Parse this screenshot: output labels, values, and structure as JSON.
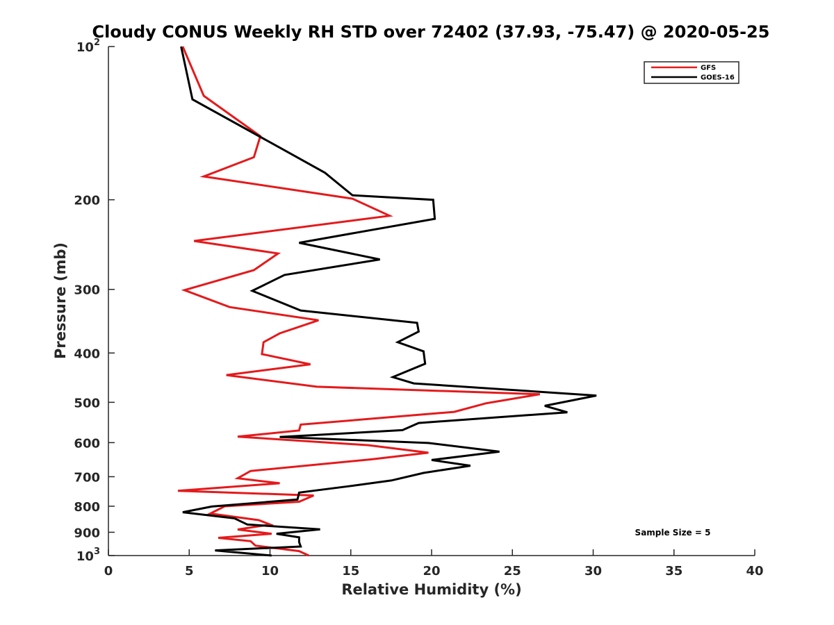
{
  "chart_data": {
    "type": "line",
    "title": "Cloudy CONUS Weekly RH STD over 72402 (37.93, -75.47) @ 2020-05-25",
    "xlabel": "Relative Humidity (%)",
    "ylabel": "Pressure (mb)",
    "xlim": [
      0,
      40
    ],
    "ylim": [
      100,
      1000
    ],
    "y_scale": "log",
    "y_reversed": true,
    "x_ticks": [
      "0",
      "5",
      "10",
      "15",
      "20",
      "25",
      "30",
      "35",
      "40"
    ],
    "y_ticks": [
      {
        "value": 100,
        "base": "10",
        "exp": "2"
      },
      {
        "value": 200,
        "label": "200"
      },
      {
        "value": 300,
        "label": "300"
      },
      {
        "value": 400,
        "label": "400"
      },
      {
        "value": 500,
        "label": "500"
      },
      {
        "value": 600,
        "label": "600"
      },
      {
        "value": 700,
        "label": "700"
      },
      {
        "value": 800,
        "label": "800"
      },
      {
        "value": 900,
        "label": "900"
      },
      {
        "value": 1000,
        "base": "10",
        "exp": "3"
      }
    ],
    "grid": false,
    "legend_position": "top-right",
    "annotation": "Sample Size = 5",
    "series": [
      {
        "name": "GFS",
        "color": "#e41a1c",
        "points": [
          [
            4.6,
            100
          ],
          [
            5.9,
            125
          ],
          [
            9.4,
            150
          ],
          [
            9.0,
            165
          ],
          [
            5.9,
            180
          ],
          [
            15.1,
            199
          ],
          [
            17.4,
            215
          ],
          [
            5.3,
            241
          ],
          [
            10.5,
            255
          ],
          [
            9.0,
            275
          ],
          [
            4.7,
            301
          ],
          [
            7.5,
            325
          ],
          [
            13.0,
            345
          ],
          [
            10.6,
            366
          ],
          [
            9.6,
            381
          ],
          [
            9.5,
            402
          ],
          [
            12.5,
            421
          ],
          [
            7.3,
            442
          ],
          [
            12.9,
            466
          ],
          [
            26.7,
            482
          ],
          [
            23.4,
            502
          ],
          [
            21.4,
            522
          ],
          [
            11.9,
            553
          ],
          [
            11.8,
            568
          ],
          [
            8.0,
            584
          ],
          [
            16.1,
            607
          ],
          [
            19.8,
            628
          ],
          [
            16.3,
            647
          ],
          [
            8.8,
            682
          ],
          [
            8.0,
            705
          ],
          [
            10.6,
            721
          ],
          [
            4.3,
            746
          ],
          [
            12.7,
            762
          ],
          [
            11.8,
            784
          ],
          [
            7.2,
            800
          ],
          [
            6.3,
            827
          ],
          [
            9.3,
            852
          ],
          [
            10.0,
            869
          ],
          [
            8.0,
            889
          ],
          [
            10.1,
            906
          ],
          [
            6.8,
            923
          ],
          [
            8.8,
            937
          ],
          [
            9.1,
            956
          ],
          [
            11.8,
            980
          ],
          [
            12.4,
            1000
          ]
        ]
      },
      {
        "name": "GOES-16",
        "color": "#000000",
        "points": [
          [
            4.5,
            100
          ],
          [
            5.2,
            127
          ],
          [
            10.6,
            158
          ],
          [
            13.4,
            177
          ],
          [
            15.1,
            196
          ],
          [
            20.1,
            200
          ],
          [
            20.2,
            218
          ],
          [
            11.8,
            243
          ],
          [
            16.8,
            262
          ],
          [
            10.9,
            281
          ],
          [
            8.9,
            302
          ],
          [
            11.9,
            330
          ],
          [
            19.1,
            349
          ],
          [
            19.2,
            363
          ],
          [
            17.9,
            381
          ],
          [
            19.5,
            397
          ],
          [
            19.6,
            420
          ],
          [
            17.6,
            446
          ],
          [
            18.9,
            459
          ],
          [
            30.2,
            485
          ],
          [
            27.0,
            508
          ],
          [
            28.4,
            523
          ],
          [
            19.2,
            549
          ],
          [
            18.2,
            567
          ],
          [
            10.6,
            585
          ],
          [
            19.8,
            601
          ],
          [
            24.2,
            625
          ],
          [
            20.0,
            649
          ],
          [
            22.4,
            666
          ],
          [
            19.5,
            688
          ],
          [
            17.5,
            712
          ],
          [
            15.0,
            730
          ],
          [
            11.8,
            752
          ],
          [
            11.7,
            776
          ],
          [
            6.4,
            801
          ],
          [
            4.6,
            822
          ],
          [
            7.8,
            845
          ],
          [
            8.6,
            869
          ],
          [
            13.1,
            888
          ],
          [
            10.4,
            906
          ],
          [
            11.8,
            921
          ],
          [
            11.8,
            941
          ],
          [
            11.9,
            960
          ],
          [
            6.6,
            977
          ],
          [
            10.1,
            1000
          ]
        ]
      }
    ]
  }
}
